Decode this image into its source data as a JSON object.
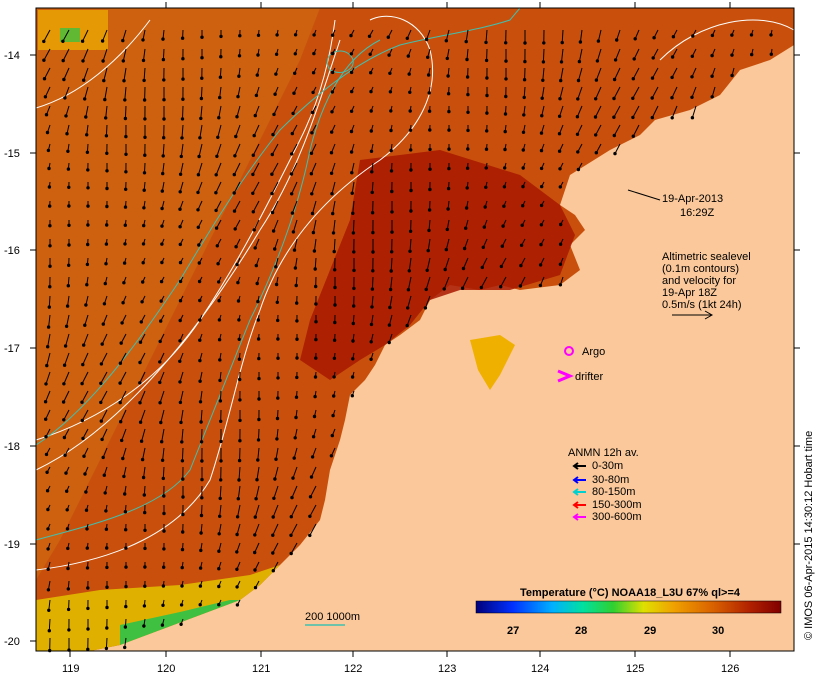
{
  "map": {
    "lat_ticks": [
      "-14",
      "-15",
      "-16",
      "-17",
      "-18",
      "-19",
      "-20"
    ],
    "lon_ticks": [
      "119",
      "120",
      "121",
      "122",
      "123",
      "124",
      "125",
      "126"
    ],
    "timestamp_date": "19-Apr-2013",
    "timestamp_time": "16:29Z",
    "altimetry_note": [
      "Altimetric sealevel",
      "(0.1m contours)",
      "and velocity for",
      "19-Apr 18Z",
      "0.5m/s (1kt 24h)"
    ],
    "argo_label": "Argo",
    "drifter_label": "drifter",
    "anmn_title": "ANMN 12h av.",
    "anmn_items": [
      {
        "label": "0-30m",
        "color": "#000000"
      },
      {
        "label": "30-80m",
        "color": "#0000ff"
      },
      {
        "label": "80-150m",
        "color": "#00d0d0"
      },
      {
        "label": "150-300m",
        "color": "#ff0000"
      },
      {
        "label": "300-600m",
        "color": "#ff00ff"
      }
    ],
    "depth_contour_label": "200  1000m",
    "colorbar_title": "Temperature (°C) NOAA18_L3U 67% ql>=4",
    "colorbar_ticks": [
      "27",
      "28",
      "29",
      "30"
    ],
    "credit": "© IMOS 06-Apr-2015 14:30:12 Hobart time",
    "colors": {
      "land": "#fac89a",
      "sea_warm": "#c84a0a",
      "sea_hot": "#a01400",
      "sea_cool": "#d4780e",
      "contour_cyan": "#40c0b0"
    }
  }
}
